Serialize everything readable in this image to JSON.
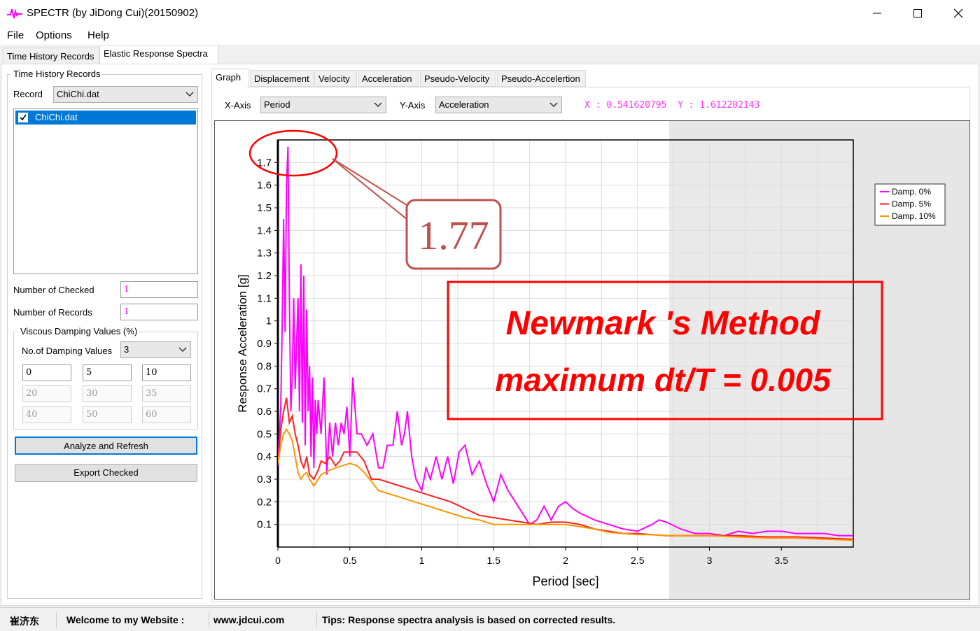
{
  "app": {
    "title": "SPECTR (by JiDong Cui)(20150902)"
  },
  "menu": [
    "File",
    "Options",
    "Help"
  ],
  "main_tabs": [
    "Time History Records",
    "Elastic Response Spectra"
  ],
  "left": {
    "group_title": "Time History Records",
    "record_label": "Record",
    "record_value": "ChiChi.dat",
    "list_items": [
      {
        "label": "ChiChi.dat",
        "checked": true
      }
    ],
    "num_checked_label": "Number of Checked",
    "num_checked_value": "1",
    "num_records_label": "Number of Records",
    "num_records_value": "1",
    "damping_group": "Viscous Damping Values (%)",
    "num_damping_label": "No.of Damping Values",
    "num_damping_value": "3",
    "damping_values": [
      "0",
      "5",
      "10",
      "20",
      "30",
      "35",
      "40",
      "50",
      "60"
    ],
    "analyze_button": "Analyze and Refresh",
    "export_button": "Export Checked"
  },
  "sub_tabs": [
    "Graph",
    "Displacement",
    "Velocity",
    "Acceleration",
    "Pseudo-Velocity",
    "Pseudo-Accelertion"
  ],
  "axis_select": {
    "x_label": "X-Axis",
    "x_value": "Period",
    "y_label": "Y-Axis",
    "y_value": "Acceleration",
    "x_readout": "X : 0.541620795",
    "y_readout": "Y : 1.612202143"
  },
  "annotations": {
    "callout": "1.77",
    "method_line1": "Newmark 's Method",
    "method_line2": "maximum dt/T = 0.005"
  },
  "status": {
    "author": "崔济东",
    "welcome": "Welcome to my Website :",
    "website": "www.jdcui.com",
    "tips": "Tips: Response spectra analysis is based on corrected results."
  },
  "colors": {
    "damp0": "#ff00ff",
    "damp5": "#ff2020",
    "damp10": "#ff9500",
    "annotation_red": "#ff0000",
    "selection": "#0078d7"
  },
  "chart_data": {
    "type": "line",
    "xlabel": "Period [sec]",
    "ylabel": "Response Acceleration [g]",
    "xlim": [
      0,
      4
    ],
    "ylim": [
      0,
      1.8
    ],
    "x_ticks": [
      "0",
      "0.5",
      "1",
      "1.5",
      "2",
      "2.5",
      "3",
      "3.5"
    ],
    "y_ticks": [
      "0.1",
      "0.2",
      "0.3",
      "0.4",
      "0.5",
      "0.6",
      "0.7",
      "0.8",
      "0.9",
      "1",
      "1.1",
      "1.2",
      "1.3",
      "1.4",
      "1.5",
      "1.6",
      "1.7"
    ],
    "grid": true,
    "legend": "top-right",
    "series": [
      {
        "name": "Damp. 0%",
        "x": [
          0.0,
          0.02,
          0.03,
          0.04,
          0.05,
          0.06,
          0.07,
          0.08,
          0.09,
          0.1,
          0.11,
          0.12,
          0.13,
          0.14,
          0.15,
          0.16,
          0.17,
          0.18,
          0.19,
          0.2,
          0.21,
          0.22,
          0.23,
          0.24,
          0.25,
          0.26,
          0.27,
          0.28,
          0.3,
          0.32,
          0.34,
          0.36,
          0.38,
          0.4,
          0.42,
          0.44,
          0.46,
          0.48,
          0.5,
          0.52,
          0.55,
          0.58,
          0.62,
          0.66,
          0.7,
          0.73,
          0.76,
          0.8,
          0.83,
          0.86,
          0.88,
          0.9,
          0.93,
          0.96,
          1.0,
          1.03,
          1.06,
          1.1,
          1.14,
          1.18,
          1.22,
          1.26,
          1.3,
          1.35,
          1.4,
          1.45,
          1.5,
          1.55,
          1.6,
          1.65,
          1.7,
          1.75,
          1.8,
          1.85,
          1.9,
          1.95,
          2.0,
          2.05,
          2.1,
          2.2,
          2.3,
          2.4,
          2.5,
          2.6,
          2.65,
          2.7,
          2.8,
          2.9,
          3.0,
          3.1,
          3.2,
          3.3,
          3.4,
          3.5,
          3.6,
          3.7,
          3.8,
          3.9,
          4.0
        ],
        "y": [
          0.36,
          0.62,
          1.0,
          1.45,
          0.95,
          1.6,
          1.77,
          1.1,
          0.6,
          0.75,
          1.1,
          0.7,
          0.9,
          1.1,
          0.6,
          1.25,
          0.55,
          1.2,
          0.45,
          1.05,
          0.6,
          0.8,
          0.4,
          0.75,
          0.35,
          0.65,
          0.5,
          0.65,
          0.5,
          0.75,
          0.32,
          0.55,
          0.4,
          0.55,
          0.45,
          0.55,
          0.5,
          0.62,
          0.4,
          0.75,
          0.5,
          0.5,
          0.45,
          0.5,
          0.35,
          0.35,
          0.45,
          0.45,
          0.6,
          0.45,
          0.5,
          0.6,
          0.4,
          0.3,
          0.25,
          0.35,
          0.3,
          0.4,
          0.3,
          0.4,
          0.28,
          0.42,
          0.45,
          0.32,
          0.38,
          0.28,
          0.2,
          0.32,
          0.25,
          0.2,
          0.15,
          0.1,
          0.12,
          0.18,
          0.12,
          0.18,
          0.2,
          0.17,
          0.15,
          0.12,
          0.1,
          0.08,
          0.07,
          0.1,
          0.12,
          0.11,
          0.08,
          0.06,
          0.06,
          0.05,
          0.07,
          0.06,
          0.07,
          0.07,
          0.06,
          0.06,
          0.06,
          0.05,
          0.05
        ]
      },
      {
        "name": "Damp. 5%",
        "x": [
          0.0,
          0.02,
          0.04,
          0.06,
          0.08,
          0.1,
          0.12,
          0.14,
          0.16,
          0.18,
          0.2,
          0.22,
          0.25,
          0.28,
          0.3,
          0.33,
          0.36,
          0.4,
          0.43,
          0.46,
          0.5,
          0.55,
          0.6,
          0.65,
          0.7,
          0.75,
          0.8,
          0.9,
          1.0,
          1.1,
          1.2,
          1.3,
          1.4,
          1.5,
          1.6,
          1.7,
          1.8,
          1.9,
          2.0,
          2.1,
          2.2,
          2.3,
          2.4,
          2.5,
          2.6,
          2.7,
          2.8,
          2.9,
          3.0,
          3.2,
          3.4,
          3.6,
          3.8,
          4.0
        ],
        "y": [
          0.37,
          0.52,
          0.6,
          0.66,
          0.55,
          0.58,
          0.5,
          0.45,
          0.38,
          0.35,
          0.4,
          0.32,
          0.3,
          0.34,
          0.38,
          0.37,
          0.4,
          0.36,
          0.38,
          0.42,
          0.42,
          0.42,
          0.38,
          0.3,
          0.3,
          0.29,
          0.28,
          0.26,
          0.24,
          0.22,
          0.2,
          0.17,
          0.14,
          0.13,
          0.12,
          0.11,
          0.1,
          0.11,
          0.11,
          0.1,
          0.08,
          0.07,
          0.06,
          0.06,
          0.055,
          0.05,
          0.05,
          0.05,
          0.05,
          0.05,
          0.045,
          0.045,
          0.04,
          0.035
        ]
      },
      {
        "name": "Damp. 10%",
        "x": [
          0.0,
          0.02,
          0.04,
          0.06,
          0.08,
          0.1,
          0.12,
          0.14,
          0.16,
          0.18,
          0.2,
          0.22,
          0.25,
          0.28,
          0.3,
          0.33,
          0.36,
          0.4,
          0.45,
          0.5,
          0.55,
          0.6,
          0.65,
          0.7,
          0.8,
          0.9,
          1.0,
          1.1,
          1.2,
          1.3,
          1.4,
          1.5,
          1.6,
          1.7,
          1.8,
          1.9,
          2.0,
          2.1,
          2.2,
          2.3,
          2.4,
          2.5,
          2.6,
          2.7,
          2.8,
          2.9,
          3.0,
          3.2,
          3.4,
          3.6,
          3.8,
          4.0
        ],
        "y": [
          0.37,
          0.45,
          0.5,
          0.52,
          0.5,
          0.47,
          0.4,
          0.33,
          0.3,
          0.32,
          0.33,
          0.3,
          0.27,
          0.3,
          0.32,
          0.33,
          0.34,
          0.35,
          0.36,
          0.37,
          0.36,
          0.33,
          0.29,
          0.25,
          0.23,
          0.21,
          0.19,
          0.17,
          0.15,
          0.13,
          0.12,
          0.1,
          0.1,
          0.1,
          0.1,
          0.1,
          0.1,
          0.09,
          0.08,
          0.065,
          0.06,
          0.055,
          0.055,
          0.05,
          0.05,
          0.05,
          0.05,
          0.045,
          0.04,
          0.04,
          0.035,
          0.03
        ]
      }
    ]
  }
}
